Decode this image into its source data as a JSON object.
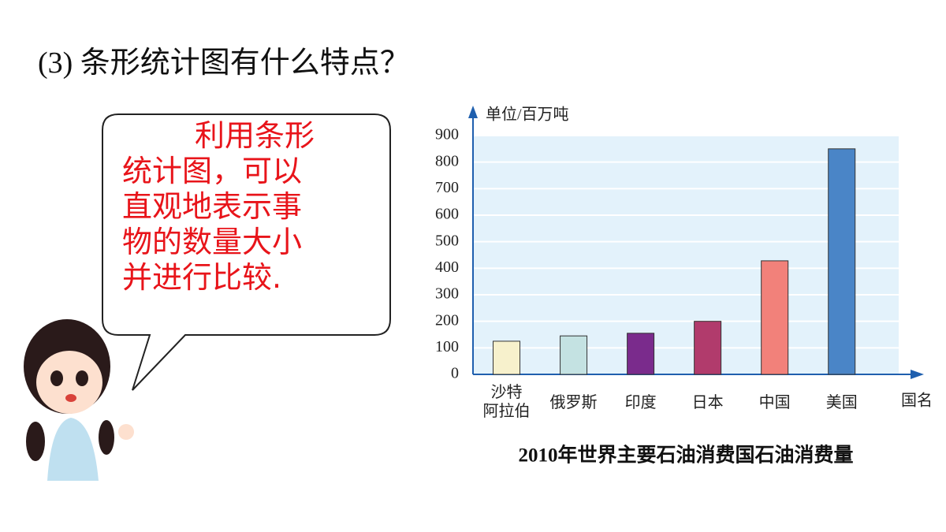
{
  "heading": "(3) 条形统计图有什么特点？",
  "bubble": {
    "lines": [
      "利用条形",
      "统计图，可以",
      "直观地表示事",
      "物的数量大小",
      "并进行比较."
    ]
  },
  "chart_data": {
    "type": "bar",
    "title": "2010年世界主要石油消费国石油消费量",
    "y_label": "单位/百万吨",
    "x_label": "国名",
    "categories": [
      "沙特\n阿拉伯",
      "俄罗斯",
      "印度",
      "日本",
      "中国",
      "美国"
    ],
    "values": [
      125,
      145,
      155,
      200,
      428,
      850
    ],
    "colors": [
      "#f7f1cc",
      "#c4e2e2",
      "#7a2b8c",
      "#b13b6c",
      "#f2817a",
      "#4a85c7"
    ],
    "ylim": [
      0,
      900
    ],
    "yticks": [
      0,
      100,
      200,
      300,
      400,
      500,
      600,
      700,
      800,
      900
    ],
    "grid": true
  }
}
